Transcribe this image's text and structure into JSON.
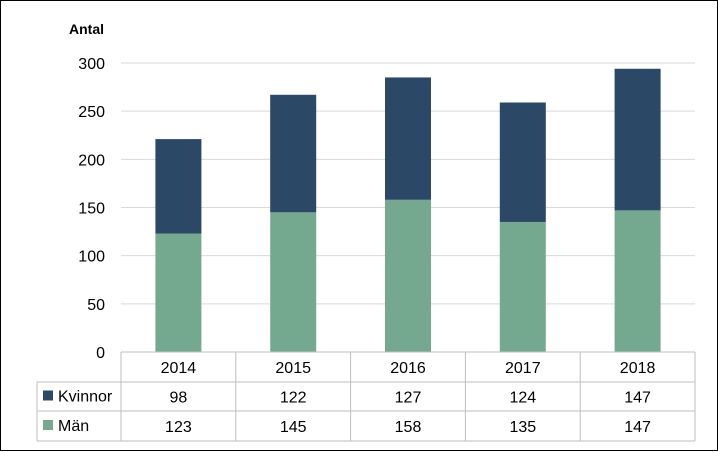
{
  "chart_data": {
    "type": "bar",
    "stacked": true,
    "ylabel": "Antal",
    "ylim": [
      0,
      300
    ],
    "yticks": [
      0,
      50,
      100,
      150,
      200,
      250,
      300
    ],
    "grid": true,
    "categories": [
      "2014",
      "2015",
      "2016",
      "2017",
      "2018"
    ],
    "series": [
      {
        "name": "Män",
        "values": [
          123,
          145,
          158,
          135,
          147
        ],
        "color": "#74a990"
      },
      {
        "name": "Kvinnor",
        "values": [
          98,
          122,
          127,
          124,
          147
        ],
        "color": "#2b4867"
      }
    ],
    "data_table": {
      "rows": [
        {
          "label": "Kvinnor",
          "values": [
            98,
            122,
            127,
            124,
            147
          ],
          "color": "#2b4867"
        },
        {
          "label": "Män",
          "values": [
            123,
            145,
            158,
            135,
            147
          ],
          "color": "#74a990"
        }
      ]
    }
  }
}
